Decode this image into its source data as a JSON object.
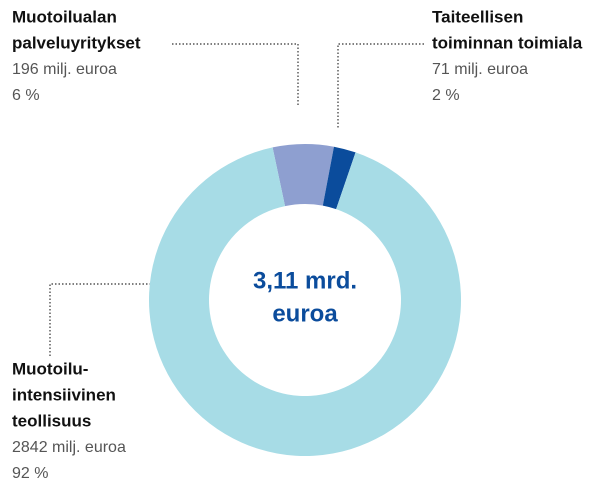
{
  "chart_data": {
    "type": "donut",
    "categories": [
      [
        "Muotoilualan",
        "palveluyritykset"
      ],
      [
        "Taiteellisen",
        "toiminnan toimiala"
      ],
      [
        "Muotoilu-",
        "intensiivinen",
        "teollisuus"
      ]
    ],
    "values": [
      196,
      71,
      2842
    ],
    "value_labels": [
      "196 milj. euroa",
      "71 milj. euroa",
      "2842 milj. euroa"
    ],
    "percents": [
      6,
      2,
      92
    ],
    "percent_labels": [
      "6 %",
      "2 %",
      "92 %"
    ],
    "colors": [
      "#8e9fd0",
      "#0b4c9c",
      "#a7dce6"
    ],
    "center_text": [
      "3,11 mrd.",
      "euroa"
    ]
  }
}
